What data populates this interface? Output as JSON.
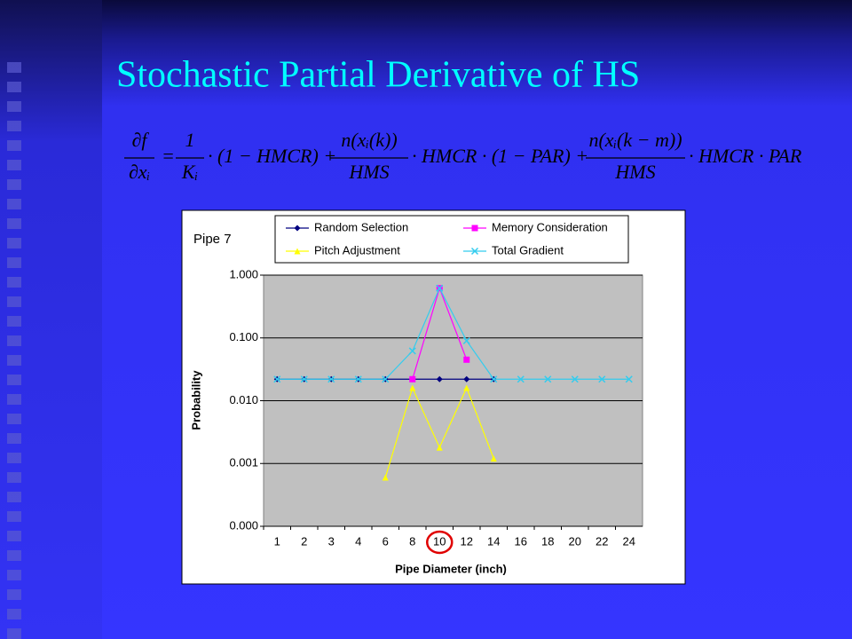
{
  "title": "Stochastic Partial Derivative of HS",
  "formula": {
    "lhs": {
      "num": "∂f",
      "den": "∂xᵢ"
    },
    "equals": "=",
    "terms": [
      {
        "num": "1",
        "den": "Kᵢ",
        "rest": "· (1 − HMCR) +"
      },
      {
        "num": "n(xᵢ(k))",
        "den": "HMS",
        "rest": "· HMCR · (1 − PAR) +"
      },
      {
        "num": "n(xᵢ(k − m))",
        "den": "HMS",
        "rest": "· HMCR · PAR"
      }
    ]
  },
  "chart_data": {
    "type": "line",
    "title": "Pipe 7",
    "x_label": "Pipe Diameter (inch)",
    "y_label": "Probability",
    "categories": [
      "1",
      "2",
      "3",
      "4",
      "6",
      "8",
      "10",
      "12",
      "14",
      "16",
      "18",
      "20",
      "22",
      "24"
    ],
    "log_scale": "y",
    "grid": true,
    "ylim": [
      0.0001,
      1
    ],
    "yticks": [
      {
        "value": 0.0001,
        "label": "0.000"
      },
      {
        "value": 0.001,
        "label": "0.001"
      },
      {
        "value": 0.01,
        "label": "0.010"
      },
      {
        "value": 0.1,
        "label": "0.100"
      },
      {
        "value": 1,
        "label": "1.000"
      }
    ],
    "series": [
      {
        "name": "Random Selection",
        "color": "#000080",
        "marker": "diamond",
        "values": [
          0.022,
          0.022,
          0.022,
          0.022,
          0.022,
          0.022,
          0.022,
          0.022,
          0.022,
          null,
          null,
          null,
          null,
          null
        ]
      },
      {
        "name": "Memory Consideration",
        "color": "#ff00ff",
        "marker": "square",
        "values": [
          null,
          null,
          null,
          null,
          null,
          0.022,
          0.62,
          0.045,
          null,
          null,
          null,
          null,
          null,
          null
        ]
      },
      {
        "name": "Pitch Adjustment",
        "color": "#ffff00",
        "marker": "triangle",
        "values": [
          null,
          null,
          null,
          null,
          0.0006,
          0.016,
          0.0018,
          0.016,
          0.0012,
          null,
          null,
          null,
          null,
          null
        ]
      },
      {
        "name": "Total Gradient",
        "color": "#33ccee",
        "marker": "x",
        "values": [
          0.022,
          0.022,
          0.022,
          0.022,
          0.022,
          0.062,
          0.62,
          0.09,
          0.022,
          0.022,
          0.022,
          0.022,
          0.022,
          0.022
        ]
      }
    ]
  }
}
